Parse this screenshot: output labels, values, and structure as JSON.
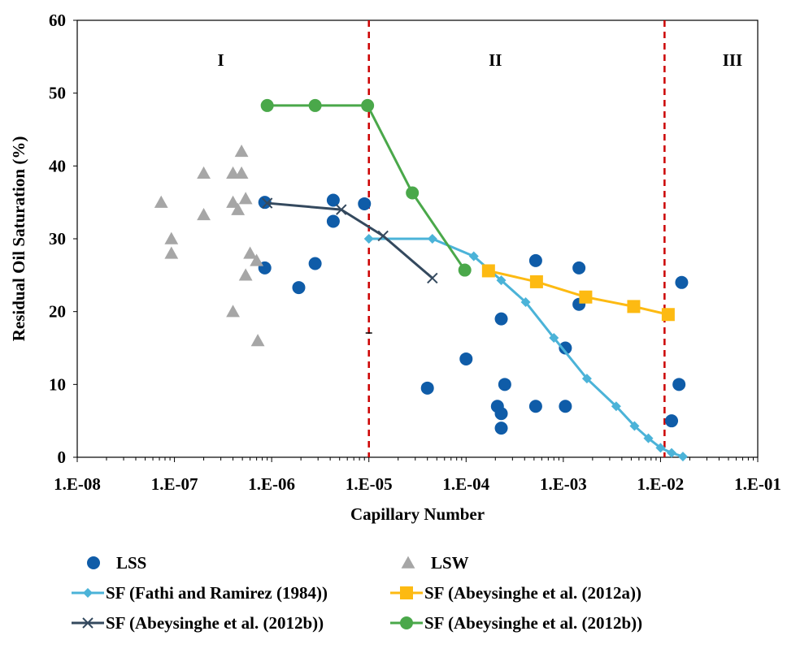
{
  "chart_data": {
    "type": "scatter",
    "title": "",
    "xlabel": "Capillary Number",
    "ylabel": "Residual Oil Saturation (%)",
    "x_scale": "log",
    "xlim": [
      1e-08,
      0.1
    ],
    "ylim": [
      0,
      60
    ],
    "x_tick_labels": [
      "1.E-08",
      "1.E-07",
      "1.E-06",
      "1.E-05",
      "1.E-04",
      "1.E-03",
      "1.E-02",
      "1.E-01"
    ],
    "y_tick_labels": [
      "0",
      "10",
      "20",
      "30",
      "40",
      "50",
      "60"
    ],
    "grid": false,
    "legend_position": "bottom",
    "regions": [
      {
        "label": "I",
        "x_label_at": 3e-07
      },
      {
        "label": "II",
        "x_label_at": 0.0002
      },
      {
        "label": "III",
        "x_label_at": 0.055
      }
    ],
    "region_boundaries": [
      1e-05,
      0.011
    ],
    "boundary_color": "#cc0000",
    "series": [
      {
        "name": "LSS",
        "marker": "circle",
        "line": false,
        "color": "#0f5ca8",
        "points": [
          [
            8.5e-07,
            35
          ],
          [
            8.5e-07,
            26
          ],
          [
            1.9e-06,
            23.3
          ],
          [
            2.8e-06,
            26.6
          ],
          [
            4.3e-06,
            35.3
          ],
          [
            4.3e-06,
            32.4
          ],
          [
            9e-06,
            34.8
          ],
          [
            4e-05,
            9.5
          ],
          [
            0.0001,
            13.5
          ],
          [
            0.00021,
            7
          ],
          [
            0.00023,
            4
          ],
          [
            0.00023,
            6
          ],
          [
            0.00023,
            19
          ],
          [
            0.00025,
            10
          ],
          [
            0.00052,
            27
          ],
          [
            0.00052,
            7
          ],
          [
            0.00105,
            15
          ],
          [
            0.00105,
            7
          ],
          [
            0.00145,
            26
          ],
          [
            0.00145,
            21
          ],
          [
            0.013,
            5
          ],
          [
            0.0155,
            10
          ],
          [
            0.0165,
            24
          ]
        ]
      },
      {
        "name": "LSW",
        "marker": "triangle",
        "line": false,
        "color": "#a6a6a6",
        "points": [
          [
            7.3e-08,
            35
          ],
          [
            9.3e-08,
            30
          ],
          [
            9.3e-08,
            28
          ],
          [
            2e-07,
            39
          ],
          [
            2e-07,
            33.3
          ],
          [
            4e-07,
            39
          ],
          [
            4e-07,
            35
          ],
          [
            4e-07,
            20
          ],
          [
            4.5e-07,
            34
          ],
          [
            4.9e-07,
            39
          ],
          [
            4.9e-07,
            42
          ],
          [
            5.4e-07,
            35.5
          ],
          [
            5.4e-07,
            25
          ],
          [
            6e-07,
            28
          ],
          [
            7e-07,
            27
          ],
          [
            7.2e-07,
            16
          ]
        ]
      },
      {
        "name": "SF (Fathi and Ramirez (1984))",
        "marker": "diamond",
        "line": true,
        "color": "#4bb3d8",
        "points": [
          [
            1e-05,
            30
          ],
          [
            4.5e-05,
            30
          ],
          [
            0.00012,
            27.6
          ],
          [
            0.00023,
            24.3
          ],
          [
            0.00041,
            21.3
          ],
          [
            0.0008,
            16.4
          ],
          [
            0.00175,
            10.8
          ],
          [
            0.0035,
            7
          ],
          [
            0.0054,
            4.3
          ],
          [
            0.0075,
            2.6
          ],
          [
            0.01,
            1.3
          ],
          [
            0.013,
            0.6
          ],
          [
            0.017,
            0.1
          ]
        ]
      },
      {
        "name": "SF (Abeysinghe et al. (2012a))",
        "marker": "square",
        "line": true,
        "color": "#fdba12",
        "points": [
          [
            0.00017,
            25.6
          ],
          [
            0.00053,
            24.1
          ],
          [
            0.0017,
            22
          ],
          [
            0.0053,
            20.7
          ],
          [
            0.012,
            19.6
          ]
        ]
      },
      {
        "name": "SF (Abeysinghe et al. (2012b))",
        "marker": "x",
        "line": true,
        "color": "#34495e",
        "points": [
          [
            9e-07,
            34.9
          ],
          [
            5.2e-06,
            34
          ],
          [
            1.4e-05,
            30.4
          ],
          [
            4.5e-05,
            24.6
          ]
        ]
      },
      {
        "name": "SF (Abeysinghe et al. (2012b))",
        "marker": "circle",
        "line": true,
        "color": "#4aa84a",
        "points": [
          [
            9e-07,
            48.3
          ],
          [
            2.8e-06,
            48.3
          ],
          [
            9.7e-06,
            48.3
          ],
          [
            2.8e-05,
            36.3
          ],
          [
            9.7e-05,
            25.7
          ]
        ]
      }
    ]
  }
}
